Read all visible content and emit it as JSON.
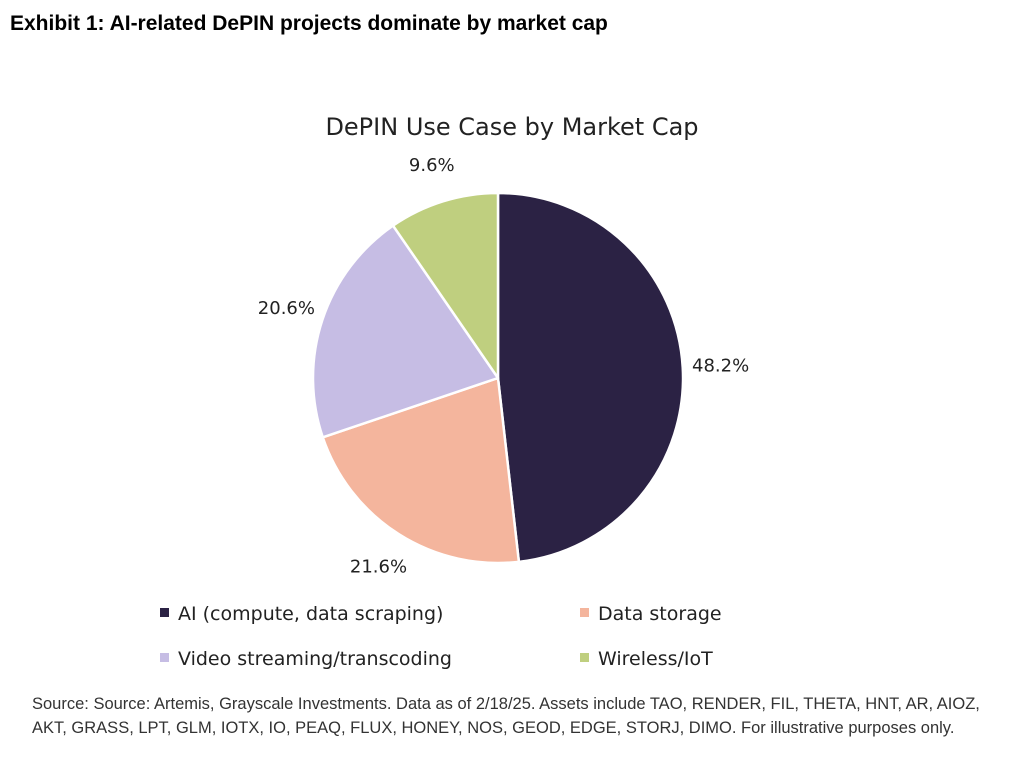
{
  "exhibit_title": "Exhibit 1: AI-related DePIN projects dominate by market cap",
  "source_note": "Source: Source: Artemis, Grayscale Investments. Data as of 2/18/25. Assets include TAO, RENDER, FIL, THETA, HNT, AR, AIOZ, AKT, GRASS, LPT, GLM, IOTX, IO, PEAQ, FLUX, HONEY, NOS, GEOD, EDGE, STORJ, DIMO. For illustrative purposes only.",
  "chart_data": {
    "type": "pie",
    "title": "DePIN Use Case by Market Cap",
    "categories": [
      "AI (compute, data scraping)",
      "Data storage",
      "Video streaming/transcoding",
      "Wireless/IoT"
    ],
    "values": [
      48.2,
      21.6,
      20.6,
      9.6
    ],
    "labels": [
      "48.2%",
      "21.6%",
      "20.6%",
      "9.6%"
    ],
    "colors": [
      "#2b2244",
      "#f4b59d",
      "#c6bde4",
      "#bfcf7f"
    ],
    "start_angle": "12 o'clock",
    "direction": "clockwise",
    "legend": {
      "placement": "bottom",
      "columns": 2
    }
  }
}
